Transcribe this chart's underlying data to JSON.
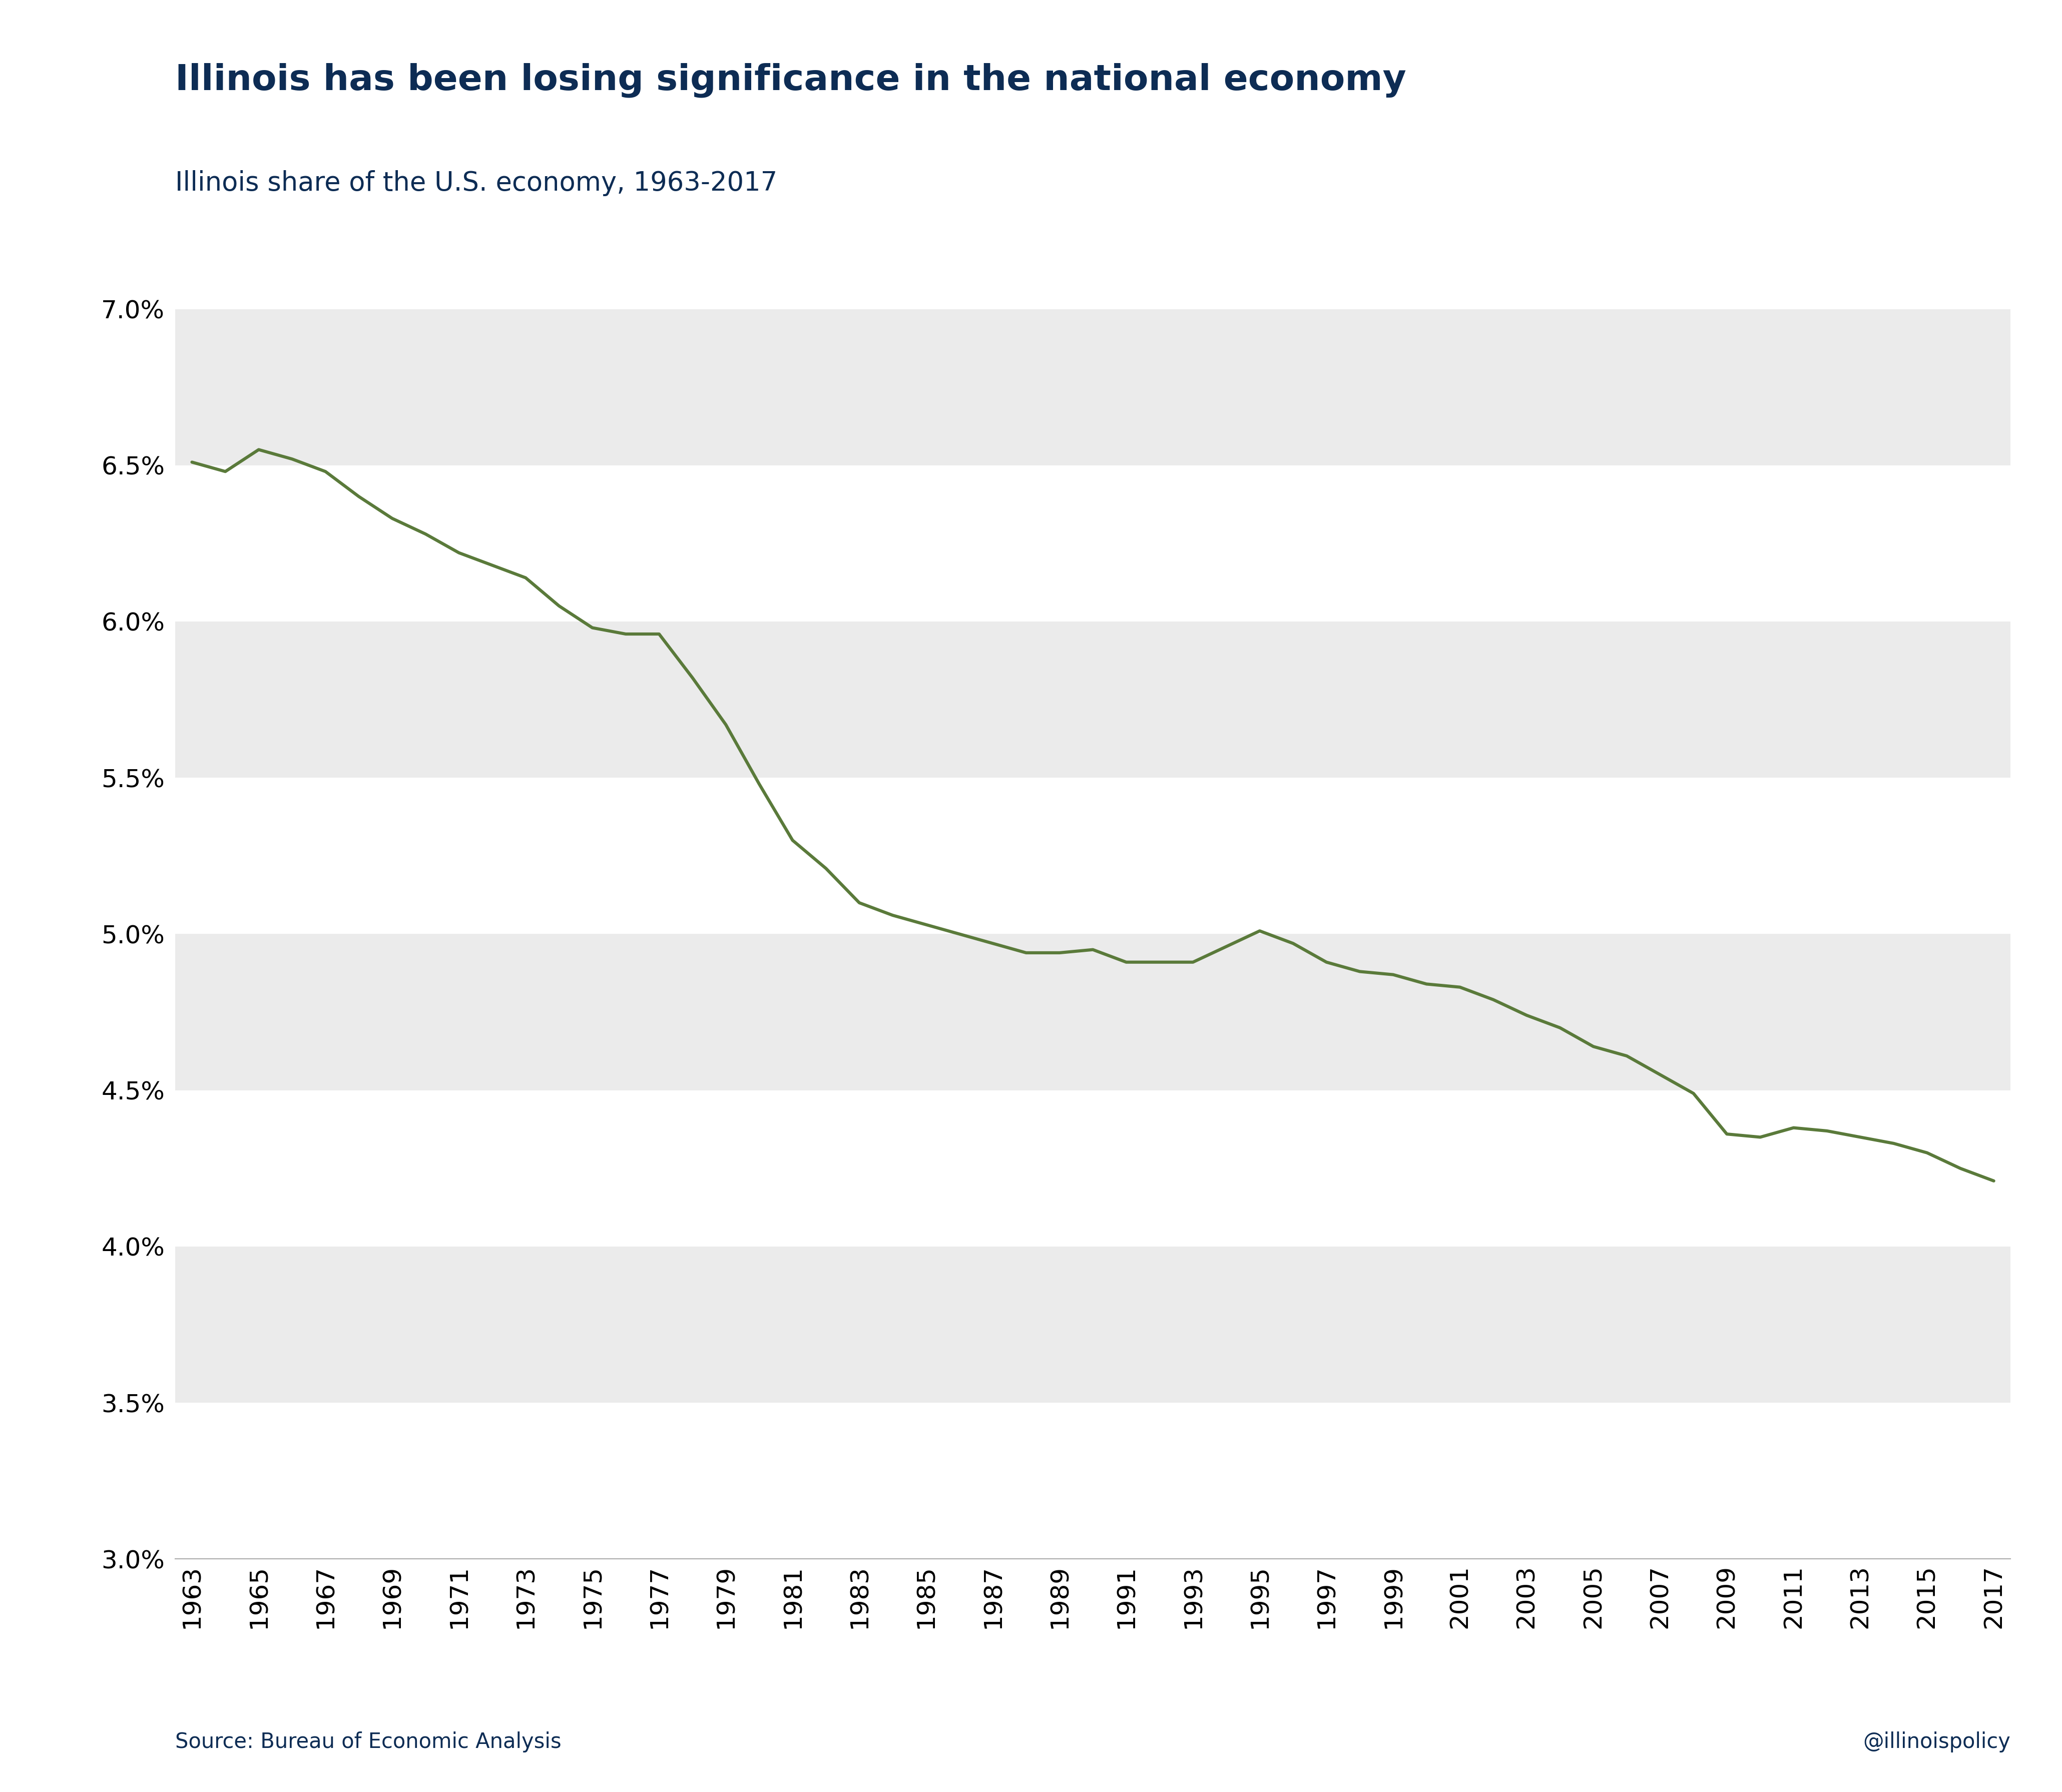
{
  "title": "Illinois has been losing significance in the national economy",
  "subtitle": "Illinois share of the U.S. economy, 1963-2017",
  "source_text": "Source: Bureau of Economic Analysis",
  "handle_text": "@illinoispolicy",
  "title_color": "#0d2c54",
  "subtitle_color": "#0d2c54",
  "line_color": "#5a7a3a",
  "background_color": "#ffffff",
  "plot_bg_color": "#ffffff",
  "band_color": "#ebebeb",
  "ylim": [
    0.03,
    0.071
  ],
  "yticks": [
    0.03,
    0.035,
    0.04,
    0.045,
    0.05,
    0.055,
    0.06,
    0.065,
    0.07
  ],
  "years": [
    1963,
    1964,
    1965,
    1966,
    1967,
    1968,
    1969,
    1970,
    1971,
    1972,
    1973,
    1974,
    1975,
    1976,
    1977,
    1978,
    1979,
    1980,
    1981,
    1982,
    1983,
    1984,
    1985,
    1986,
    1987,
    1988,
    1989,
    1990,
    1991,
    1992,
    1993,
    1994,
    1995,
    1996,
    1997,
    1998,
    1999,
    2000,
    2001,
    2002,
    2003,
    2004,
    2005,
    2006,
    2007,
    2008,
    2009,
    2010,
    2011,
    2012,
    2013,
    2014,
    2015,
    2016,
    2017
  ],
  "values": [
    0.0651,
    0.0648,
    0.0655,
    0.0652,
    0.0648,
    0.064,
    0.0633,
    0.0628,
    0.0622,
    0.0618,
    0.0614,
    0.0605,
    0.0598,
    0.0596,
    0.0596,
    0.0582,
    0.0567,
    0.0548,
    0.053,
    0.0521,
    0.051,
    0.0506,
    0.0503,
    0.05,
    0.0497,
    0.0494,
    0.0494,
    0.0495,
    0.0491,
    0.0491,
    0.0491,
    0.0496,
    0.0501,
    0.0497,
    0.0491,
    0.0488,
    0.0487,
    0.0484,
    0.0483,
    0.0479,
    0.0474,
    0.047,
    0.0464,
    0.0461,
    0.0455,
    0.0449,
    0.0436,
    0.0435,
    0.0438,
    0.0437,
    0.0435,
    0.0433,
    0.043,
    0.0425,
    0.0421
  ],
  "line_width": 4.5,
  "title_fontsize": 52,
  "subtitle_fontsize": 38,
  "tick_fontsize": 36,
  "source_fontsize": 30,
  "handle_fontsize": 30,
  "xtick_years": [
    1963,
    1965,
    1967,
    1969,
    1971,
    1973,
    1975,
    1977,
    1979,
    1981,
    1983,
    1985,
    1987,
    1989,
    1991,
    1993,
    1995,
    1997,
    1999,
    2001,
    2003,
    2005,
    2007,
    2009,
    2011,
    2013,
    2015,
    2017
  ]
}
